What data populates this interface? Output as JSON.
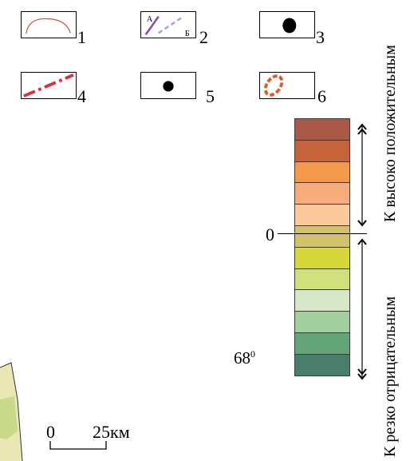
{
  "legend": {
    "items": [
      {
        "number": "1",
        "symbol": "outline-arc"
      },
      {
        "number": "2",
        "symbol": "profile-line",
        "start_label": "А",
        "end_label": "Б"
      },
      {
        "number": "3",
        "symbol": "large-dot"
      },
      {
        "number": "4",
        "symbol": "dash-dot-line"
      },
      {
        "number": "5",
        "symbol": "small-dot"
      },
      {
        "number": "6",
        "symbol": "dashed-ellipse"
      }
    ]
  },
  "color_scale": {
    "colors": [
      "#a85a46",
      "#c5643b",
      "#f29a4a",
      "#f7ad7a",
      "#fdc99a",
      "#d4c26a",
      "#d6d83a",
      "#d0e07a",
      "#d6e8c8",
      "#a2cf9e",
      "#62a678",
      "#4a7e6c"
    ],
    "zero_label": "0",
    "upper_label": "К высоко положительным",
    "lower_label": "К резко отрицательным"
  },
  "map": {
    "latitude_label": "68",
    "latitude_degree": "0",
    "scale_bar": {
      "zero": "0",
      "value": "25км"
    }
  },
  "palette": {
    "red_line": "#e3293c",
    "purple_solid": "#8a4fb3",
    "purple_dashed": "#c59ad6",
    "orange_dashed": "#e8541f",
    "arc_color": "#c05a3a"
  }
}
